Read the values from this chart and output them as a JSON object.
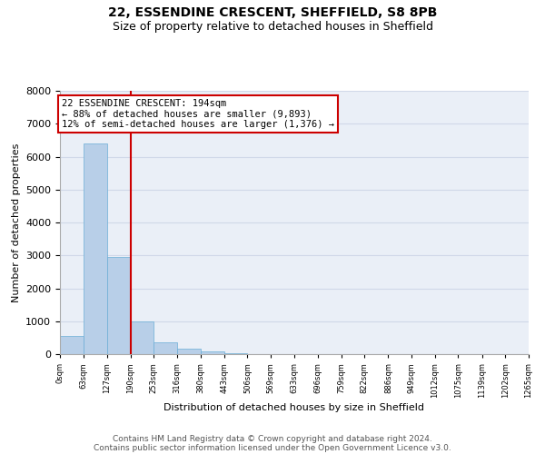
{
  "title": "22, ESSENDINE CRESCENT, SHEFFIELD, S8 8PB",
  "subtitle": "Size of property relative to detached houses in Sheffield",
  "xlabel": "Distribution of detached houses by size in Sheffield",
  "ylabel": "Number of detached properties",
  "bar_values": [
    560,
    6400,
    2950,
    1000,
    370,
    170,
    70,
    40,
    0,
    0,
    0,
    0,
    0,
    0,
    0,
    0,
    0,
    0,
    0,
    0
  ],
  "bin_edges": [
    0,
    63,
    127,
    190,
    253,
    316,
    380,
    443,
    506,
    569,
    633,
    696,
    759,
    822,
    886,
    949,
    1012,
    1075,
    1139,
    1202,
    1265
  ],
  "bar_color": "#b8cfe8",
  "bar_edge_color": "#6baed6",
  "vline_x": 190,
  "vline_color": "#cc0000",
  "annotation_text": "22 ESSENDINE CRESCENT: 194sqm\n← 88% of detached houses are smaller (9,893)\n12% of semi-detached houses are larger (1,376) →",
  "annotation_box_edge_color": "#cc0000",
  "ylim": [
    0,
    8000
  ],
  "yticks": [
    0,
    1000,
    2000,
    3000,
    4000,
    5000,
    6000,
    7000,
    8000
  ],
  "xtick_labels": [
    "0sqm",
    "63sqm",
    "127sqm",
    "190sqm",
    "253sqm",
    "316sqm",
    "380sqm",
    "443sqm",
    "506sqm",
    "569sqm",
    "633sqm",
    "696sqm",
    "759sqm",
    "822sqm",
    "886sqm",
    "949sqm",
    "1012sqm",
    "1075sqm",
    "1139sqm",
    "1202sqm",
    "1265sqm"
  ],
  "grid_color": "#d0d8e8",
  "bg_color": "#eaeff7",
  "footer_line1": "Contains HM Land Registry data © Crown copyright and database right 2024.",
  "footer_line2": "Contains public sector information licensed under the Open Government Licence v3.0.",
  "title_fontsize": 10,
  "subtitle_fontsize": 9,
  "annotation_fontsize": 7.5,
  "footer_fontsize": 6.5,
  "ylabel_fontsize": 8,
  "xlabel_fontsize": 8
}
